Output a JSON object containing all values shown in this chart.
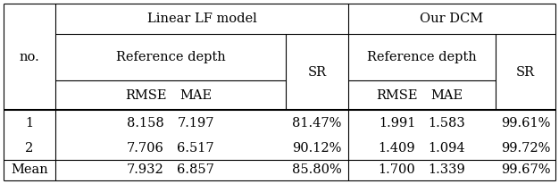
{
  "col_headers_top": [
    "Linear LF model",
    "Our DCM"
  ],
  "col_headers_mid": [
    "Reference depth",
    "SR",
    "Reference depth",
    "SR"
  ],
  "col_headers_bot": [
    "RMSE",
    "MAE",
    "RMSE",
    "MAE"
  ],
  "row_label_header": "no.",
  "row_labels": [
    "1",
    "2",
    "Mean"
  ],
  "rows": [
    [
      "8.158",
      "7.197",
      "81.47%",
      "1.991",
      "1.583",
      "99.61%"
    ],
    [
      "7.706",
      "6.517",
      "90.12%",
      "1.409",
      "1.094",
      "99.72%"
    ],
    [
      "7.932",
      "6.857",
      "85.80%",
      "1.700",
      "1.339",
      "99.67%"
    ]
  ],
  "font_size": 10.5,
  "bg_color": "white",
  "lw_thin": 0.8,
  "lw_thick": 1.5
}
